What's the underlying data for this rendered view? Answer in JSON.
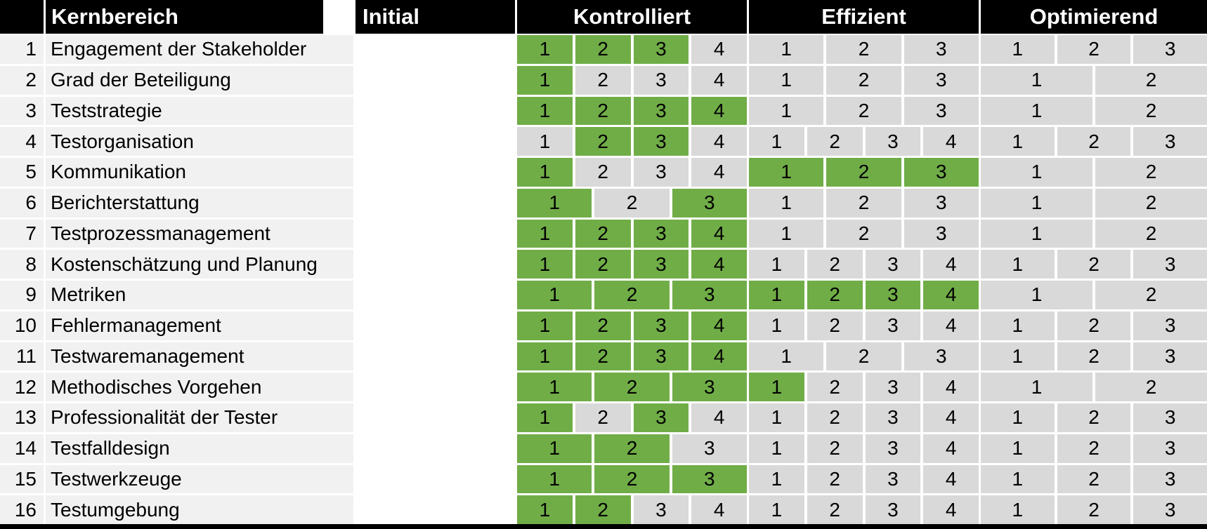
{
  "header": {
    "kernbereich": "Kernbereich",
    "initial": "Initial",
    "kontrolliert": "Kontrolliert",
    "effizient": "Effizient",
    "optimierend": "Optimierend"
  },
  "colors": {
    "achieved_green": "#70AD47",
    "unachieved_gray": "#D9D9D9",
    "row_background": "#F1F1F1",
    "header_background": "#000000",
    "header_text": "#FFFFFF",
    "grid_border": "#FFFFFF"
  },
  "chart_data": {
    "type": "table",
    "columns": [
      "Kernbereich",
      "Initial",
      "Kontrolliert",
      "Effizient",
      "Optimierend"
    ],
    "initial_column_filled_green": true,
    "rows": [
      {
        "num": "1",
        "name": "Engagement der Stakeholder",
        "kontrolliert": {
          "labels": [
            "1",
            "2",
            "3",
            "4"
          ],
          "achieved": [
            true,
            true,
            true,
            false
          ]
        },
        "effizient": {
          "labels": [
            "1",
            "2",
            "3"
          ],
          "achieved": [
            false,
            false,
            false
          ]
        },
        "optimierend": {
          "labels": [
            "1",
            "2",
            "3"
          ],
          "achieved": [
            false,
            false,
            false
          ]
        }
      },
      {
        "num": "2",
        "name": "Grad der Beteiligung",
        "kontrolliert": {
          "labels": [
            "1",
            "2",
            "3",
            "4"
          ],
          "achieved": [
            true,
            false,
            false,
            false
          ]
        },
        "effizient": {
          "labels": [
            "1",
            "2",
            "3"
          ],
          "achieved": [
            false,
            false,
            false
          ]
        },
        "optimierend": {
          "labels": [
            "1",
            "2"
          ],
          "achieved": [
            false,
            false
          ]
        }
      },
      {
        "num": "3",
        "name": "Teststrategie",
        "kontrolliert": {
          "labels": [
            "1",
            "2",
            "3",
            "4"
          ],
          "achieved": [
            true,
            true,
            true,
            true
          ]
        },
        "effizient": {
          "labels": [
            "1",
            "2",
            "3"
          ],
          "achieved": [
            false,
            false,
            false
          ]
        },
        "optimierend": {
          "labels": [
            "1",
            "2"
          ],
          "achieved": [
            false,
            false
          ]
        }
      },
      {
        "num": "4",
        "name": "Testorganisation",
        "kontrolliert": {
          "labels": [
            "1",
            "2",
            "3",
            "4"
          ],
          "achieved": [
            false,
            true,
            true,
            false
          ]
        },
        "effizient": {
          "labels": [
            "1",
            "2",
            "3",
            "4"
          ],
          "achieved": [
            false,
            false,
            false,
            false
          ]
        },
        "optimierend": {
          "labels": [
            "1",
            "2",
            "3"
          ],
          "achieved": [
            false,
            false,
            false
          ]
        }
      },
      {
        "num": "5",
        "name": "Kommunikation",
        "kontrolliert": {
          "labels": [
            "1",
            "2",
            "3",
            "4"
          ],
          "achieved": [
            true,
            false,
            false,
            false
          ]
        },
        "effizient": {
          "labels": [
            "1",
            "2",
            "3"
          ],
          "achieved": [
            true,
            true,
            true
          ]
        },
        "optimierend": {
          "labels": [
            "1",
            "2"
          ],
          "achieved": [
            false,
            false
          ]
        }
      },
      {
        "num": "6",
        "name": "Berichterstattung",
        "kontrolliert": {
          "labels": [
            "1",
            "2",
            "3"
          ],
          "achieved": [
            true,
            false,
            true
          ]
        },
        "effizient": {
          "labels": [
            "1",
            "2",
            "3"
          ],
          "achieved": [
            false,
            false,
            false
          ]
        },
        "optimierend": {
          "labels": [
            "1",
            "2"
          ],
          "achieved": [
            false,
            false
          ]
        }
      },
      {
        "num": "7",
        "name": "Testprozessmanagement",
        "kontrolliert": {
          "labels": [
            "1",
            "2",
            "3",
            "4"
          ],
          "achieved": [
            true,
            true,
            true,
            true
          ]
        },
        "effizient": {
          "labels": [
            "1",
            "2",
            "3"
          ],
          "achieved": [
            false,
            false,
            false
          ]
        },
        "optimierend": {
          "labels": [
            "1",
            "2"
          ],
          "achieved": [
            false,
            false
          ]
        }
      },
      {
        "num": "8",
        "name": "Kostenschätzung und Planung",
        "kontrolliert": {
          "labels": [
            "1",
            "2",
            "3",
            "4"
          ],
          "achieved": [
            true,
            true,
            true,
            true
          ]
        },
        "effizient": {
          "labels": [
            "1",
            "2",
            "3",
            "4"
          ],
          "achieved": [
            false,
            false,
            false,
            false
          ]
        },
        "optimierend": {
          "labels": [
            "1",
            "2",
            "3"
          ],
          "achieved": [
            false,
            false,
            false
          ]
        }
      },
      {
        "num": "9",
        "name": "Metriken",
        "kontrolliert": {
          "labels": [
            "1",
            "2",
            "3"
          ],
          "achieved": [
            true,
            true,
            true
          ]
        },
        "effizient": {
          "labels": [
            "1",
            "2",
            "3",
            "4"
          ],
          "achieved": [
            true,
            true,
            true,
            true
          ]
        },
        "optimierend": {
          "labels": [
            "1",
            "2"
          ],
          "achieved": [
            false,
            false
          ]
        }
      },
      {
        "num": "10",
        "name": "Fehlermanagement",
        "kontrolliert": {
          "labels": [
            "1",
            "2",
            "3",
            "4"
          ],
          "achieved": [
            true,
            true,
            true,
            true
          ]
        },
        "effizient": {
          "labels": [
            "1",
            "2",
            "3",
            "4"
          ],
          "achieved": [
            false,
            false,
            false,
            false
          ]
        },
        "optimierend": {
          "labels": [
            "1",
            "2",
            "3"
          ],
          "achieved": [
            false,
            false,
            false
          ]
        }
      },
      {
        "num": "11",
        "name": "Testwaremanagement",
        "kontrolliert": {
          "labels": [
            "1",
            "2",
            "3",
            "4"
          ],
          "achieved": [
            true,
            true,
            true,
            true
          ]
        },
        "effizient": {
          "labels": [
            "1",
            "2",
            "3"
          ],
          "achieved": [
            false,
            false,
            false
          ]
        },
        "optimierend": {
          "labels": [
            "1",
            "2",
            "3"
          ],
          "achieved": [
            false,
            false,
            false
          ]
        }
      },
      {
        "num": "12",
        "name": "Methodisches Vorgehen",
        "kontrolliert": {
          "labels": [
            "1",
            "2",
            "3"
          ],
          "achieved": [
            true,
            true,
            true
          ]
        },
        "effizient": {
          "labels": [
            "1",
            "2",
            "3",
            "4"
          ],
          "achieved": [
            true,
            false,
            false,
            false
          ]
        },
        "optimierend": {
          "labels": [
            "1",
            "2"
          ],
          "achieved": [
            false,
            false
          ]
        }
      },
      {
        "num": "13",
        "name": "Professionalität der Tester",
        "kontrolliert": {
          "labels": [
            "1",
            "2",
            "3",
            "4"
          ],
          "achieved": [
            true,
            false,
            true,
            false
          ]
        },
        "effizient": {
          "labels": [
            "1",
            "2",
            "3",
            "4"
          ],
          "achieved": [
            false,
            false,
            false,
            false
          ]
        },
        "optimierend": {
          "labels": [
            "1",
            "2",
            "3"
          ],
          "achieved": [
            false,
            false,
            false
          ]
        }
      },
      {
        "num": "14",
        "name": "Testfalldesign",
        "kontrolliert": {
          "labels": [
            "1",
            "2",
            "3"
          ],
          "achieved": [
            true,
            true,
            false
          ]
        },
        "effizient": {
          "labels": [
            "1",
            "2",
            "3",
            "4"
          ],
          "achieved": [
            false,
            false,
            false,
            false
          ]
        },
        "optimierend": {
          "labels": [
            "1",
            "2",
            "3"
          ],
          "achieved": [
            false,
            false,
            false
          ]
        }
      },
      {
        "num": "15",
        "name": "Testwerkzeuge",
        "kontrolliert": {
          "labels": [
            "1",
            "2",
            "3"
          ],
          "achieved": [
            true,
            true,
            true
          ]
        },
        "effizient": {
          "labels": [
            "1",
            "2",
            "3",
            "4"
          ],
          "achieved": [
            false,
            false,
            false,
            false
          ]
        },
        "optimierend": {
          "labels": [
            "1",
            "2",
            "3"
          ],
          "achieved": [
            false,
            false,
            false
          ]
        }
      },
      {
        "num": "16",
        "name": "Testumgebung",
        "kontrolliert": {
          "labels": [
            "1",
            "2",
            "3",
            "4"
          ],
          "achieved": [
            true,
            true,
            false,
            false
          ]
        },
        "effizient": {
          "labels": [
            "1",
            "2",
            "3",
            "4"
          ],
          "achieved": [
            false,
            false,
            false,
            false
          ]
        },
        "optimierend": {
          "labels": [
            "1",
            "2",
            "3"
          ],
          "achieved": [
            false,
            false,
            false
          ]
        }
      }
    ]
  }
}
